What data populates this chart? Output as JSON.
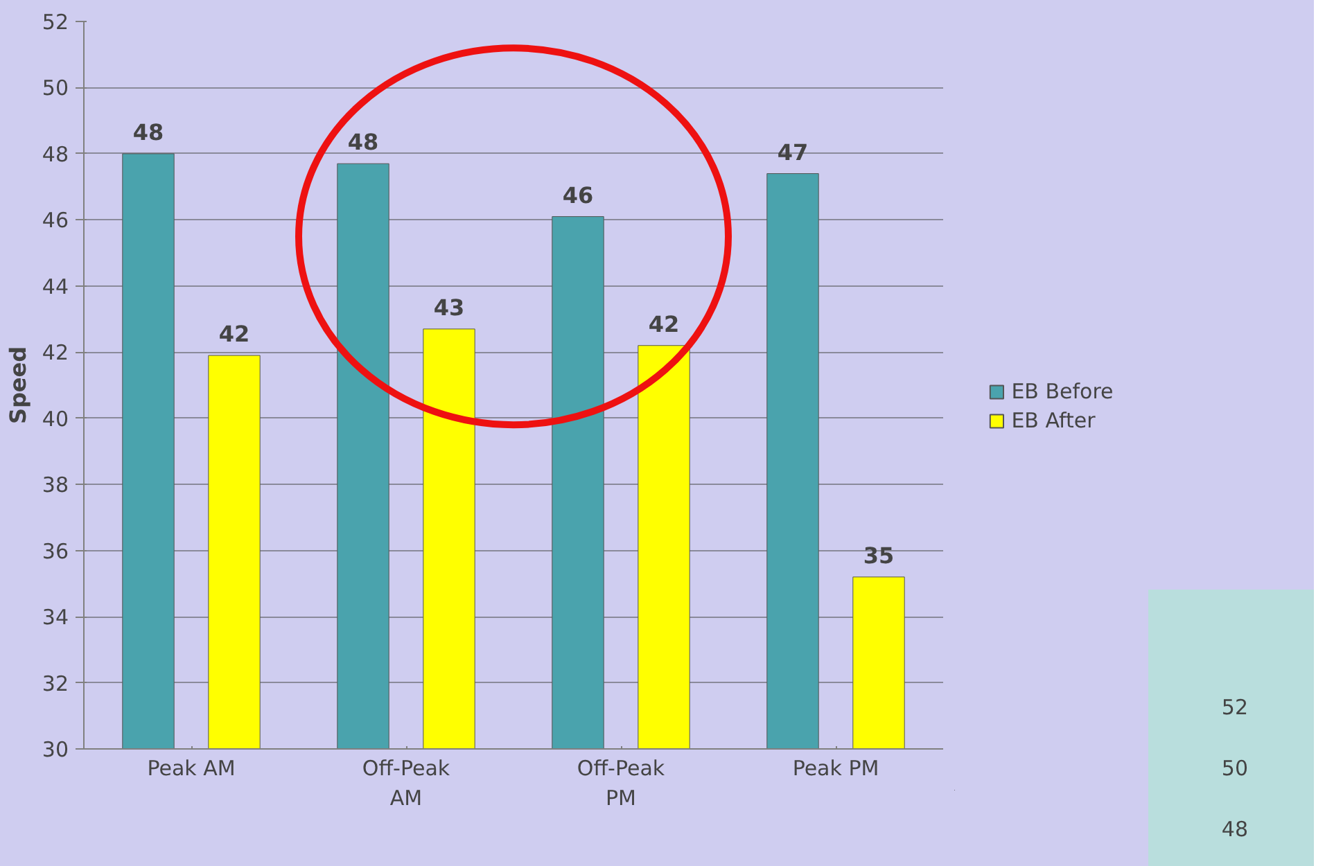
{
  "chart_data": [
    {
      "type": "bar",
      "ylabel": "Speed",
      "categories": [
        "Peak AM",
        "Off-Peak AM",
        "Off-Peak PM",
        "Peak PM"
      ],
      "series": [
        {
          "name": "EB Before",
          "color": "#4aa3ad",
          "values": [
            48.0,
            47.7,
            46.1,
            47.4
          ],
          "value_labels": [
            "48",
            "48",
            "46",
            "47"
          ]
        },
        {
          "name": "EB After",
          "color": "#ffff00",
          "values": [
            41.9,
            42.7,
            42.2,
            35.2
          ],
          "value_labels": [
            "42",
            "43",
            "42",
            "35"
          ]
        }
      ],
      "ylim": [
        30,
        52
      ],
      "yticks": [
        30,
        32,
        34,
        36,
        38,
        40,
        42,
        44,
        46,
        48,
        50,
        52
      ],
      "grid": "y",
      "legend": "right"
    },
    {
      "type": "other",
      "annotations": [
        "52",
        "50",
        "48"
      ]
    }
  ]
}
